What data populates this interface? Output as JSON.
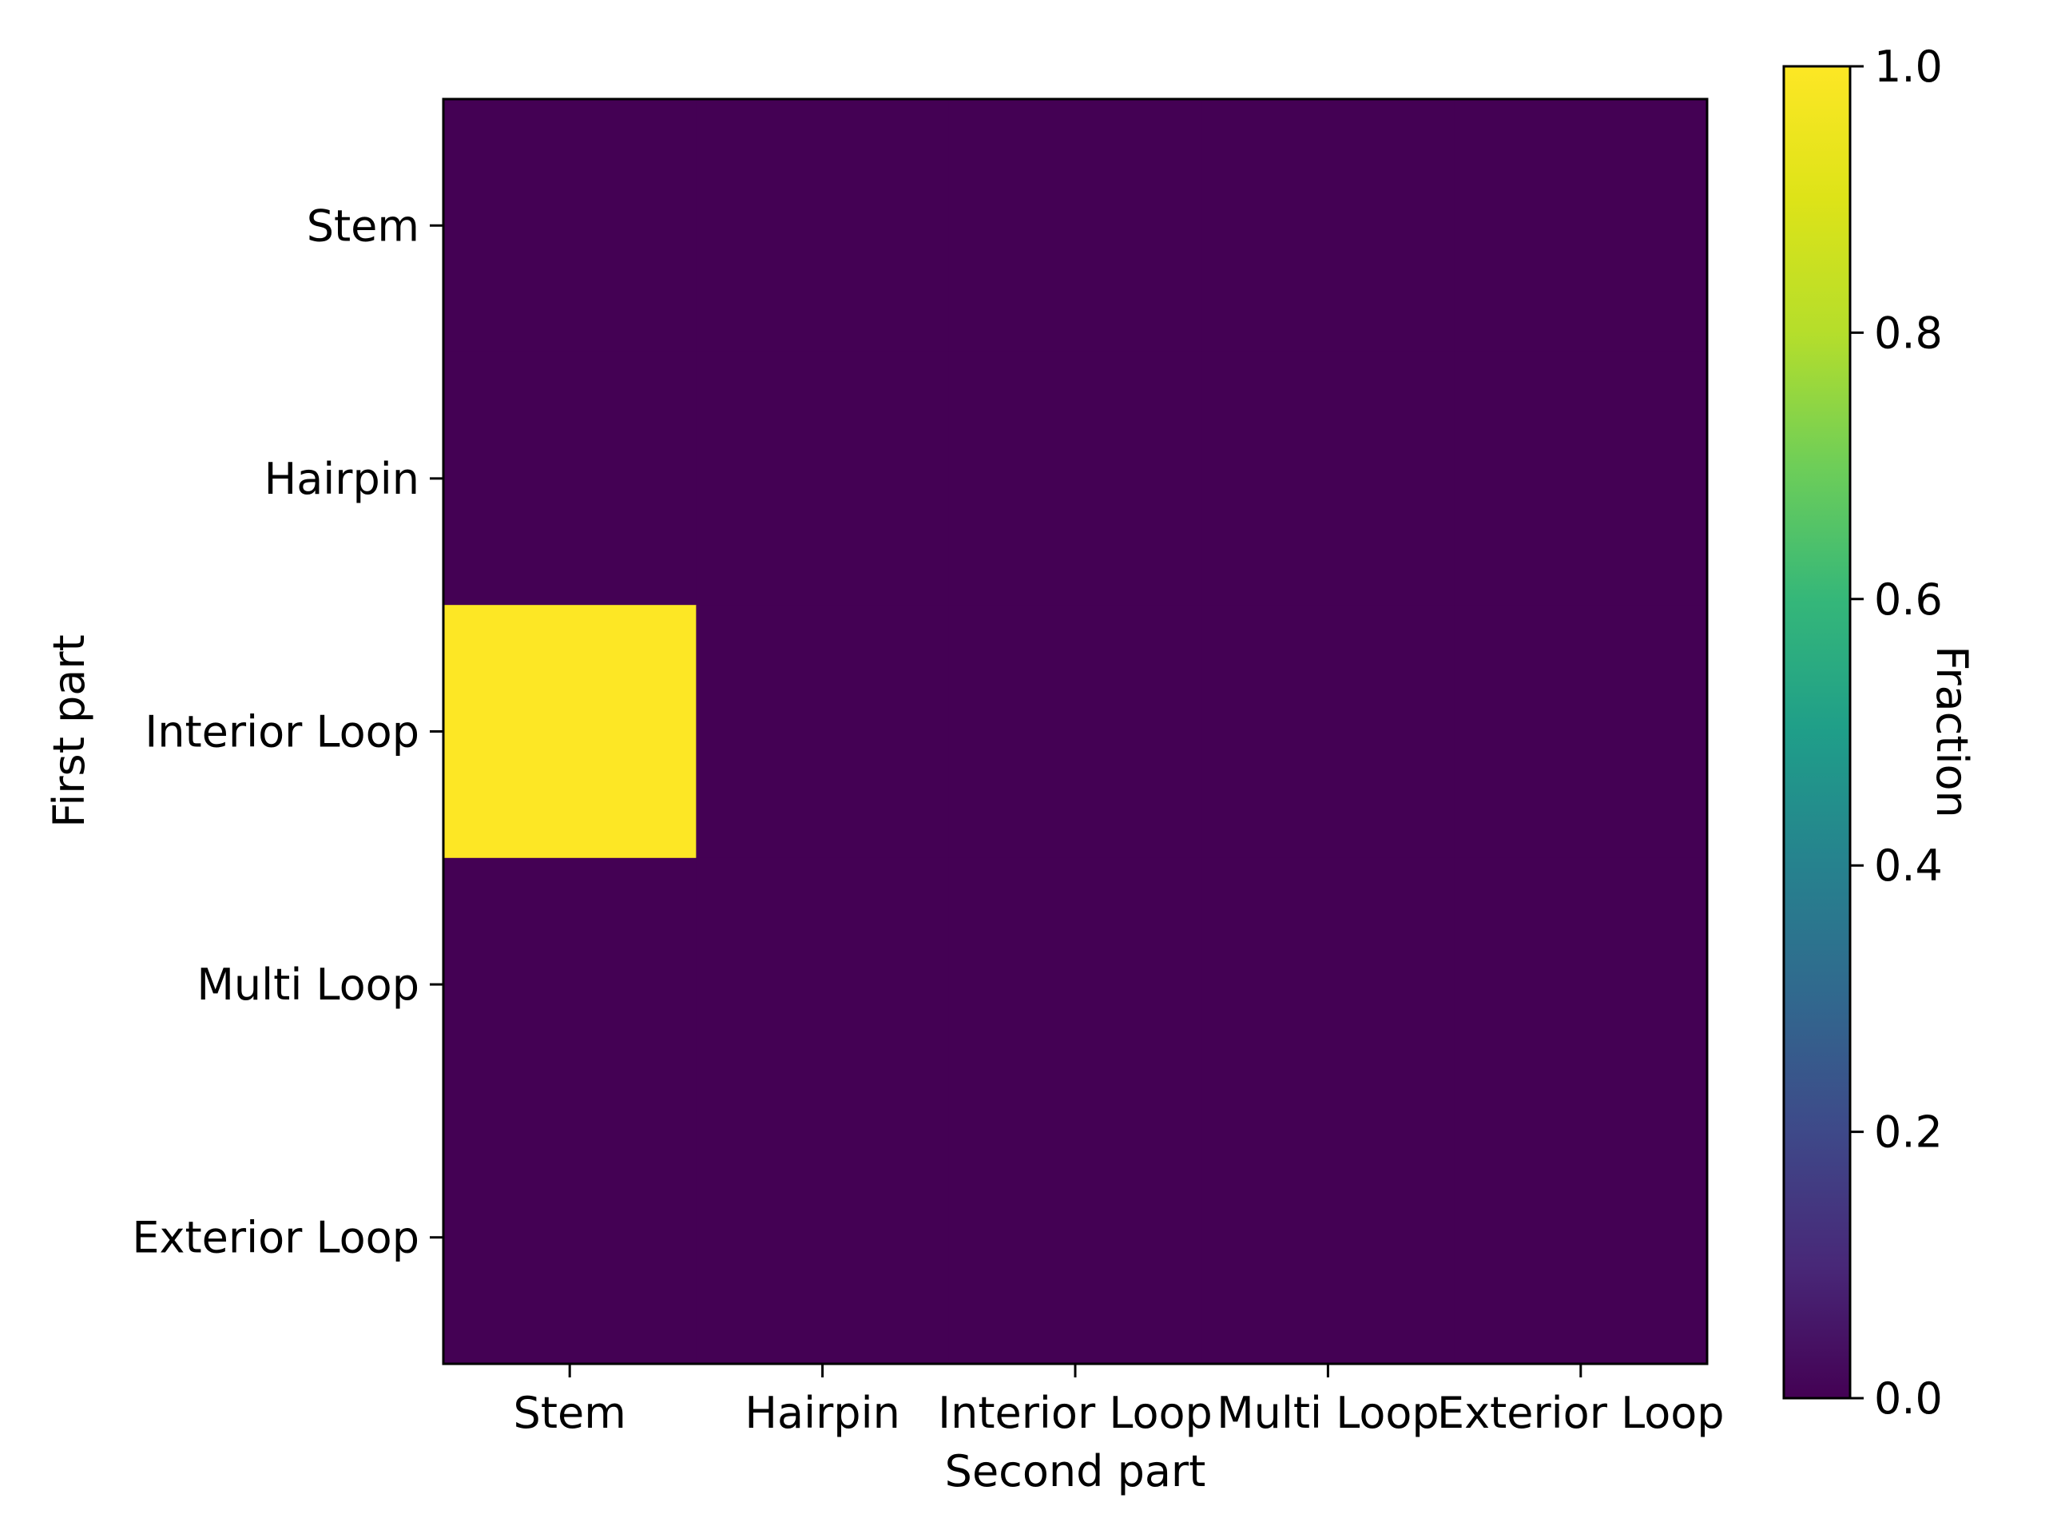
{
  "chart_data": {
    "type": "heatmap",
    "xlabel": "Second part",
    "ylabel": "First part",
    "x_categories": [
      "Stem",
      "Hairpin",
      "Interior Loop",
      "Multi Loop",
      "Exterior Loop"
    ],
    "y_categories": [
      "Stem",
      "Hairpin",
      "Interior Loop",
      "Multi Loop",
      "Exterior Loop"
    ],
    "values": [
      [
        0,
        0,
        0,
        0,
        0
      ],
      [
        0,
        0,
        0,
        0,
        0
      ],
      [
        1,
        0,
        0,
        0,
        0
      ],
      [
        0,
        0,
        0,
        0,
        0
      ],
      [
        0,
        0,
        0,
        0,
        0
      ]
    ],
    "colorbar": {
      "label": "Fraction",
      "colormap": "viridis",
      "range": [
        0,
        1
      ],
      "ticks": [
        "0.0",
        "0.2",
        "0.4",
        "0.6",
        "0.8",
        "1.0"
      ]
    },
    "colors": {
      "low": "#440154",
      "high": "#fde725"
    },
    "grid": false,
    "legend": "none"
  }
}
